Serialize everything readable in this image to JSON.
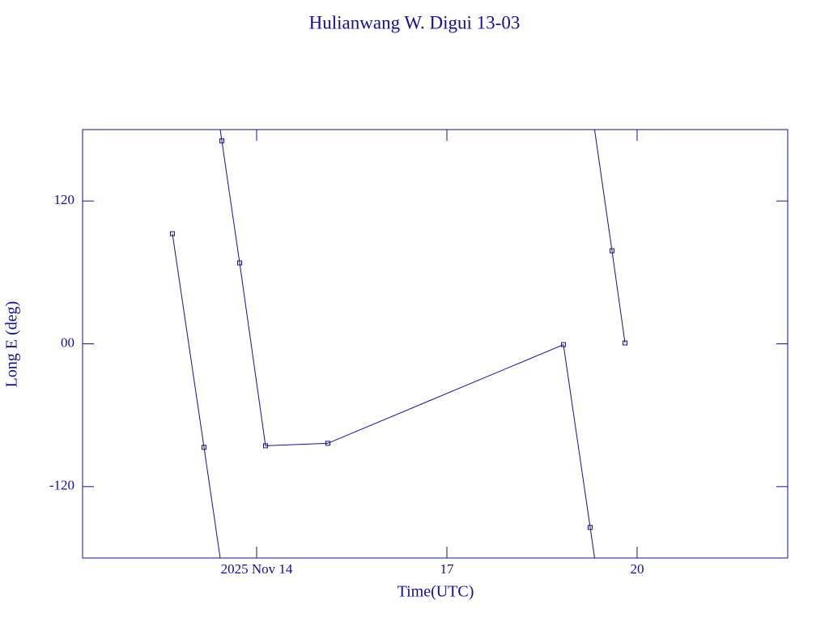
{
  "chart_data": {
    "type": "line",
    "title": "Hulianwang W. Digui 13-03",
    "xlabel": "Time(UTC)",
    "ylabel": "Long E (deg)",
    "x": [
      12.672,
      13.17,
      13.451,
      13.732,
      14.14,
      15.123,
      18.838,
      19.26,
      19.604,
      19.809
    ],
    "series": [
      {
        "color": "#10109a",
        "values": [
          92.5,
          -87.0,
          170.6,
          68.0,
          -85.7,
          -83.6,
          -0.7,
          -154.3,
          78.2,
          0.7
        ]
      }
    ],
    "xlim": [
      11.255,
      22.375
    ],
    "xticks": [
      {
        "value": 14,
        "label": "2025 Nov 14"
      },
      17,
      20
    ],
    "ylim": [
      -180,
      180
    ],
    "yticks": [
      -120,
      {
        "value": 0,
        "label": "00"
      },
      120
    ]
  }
}
